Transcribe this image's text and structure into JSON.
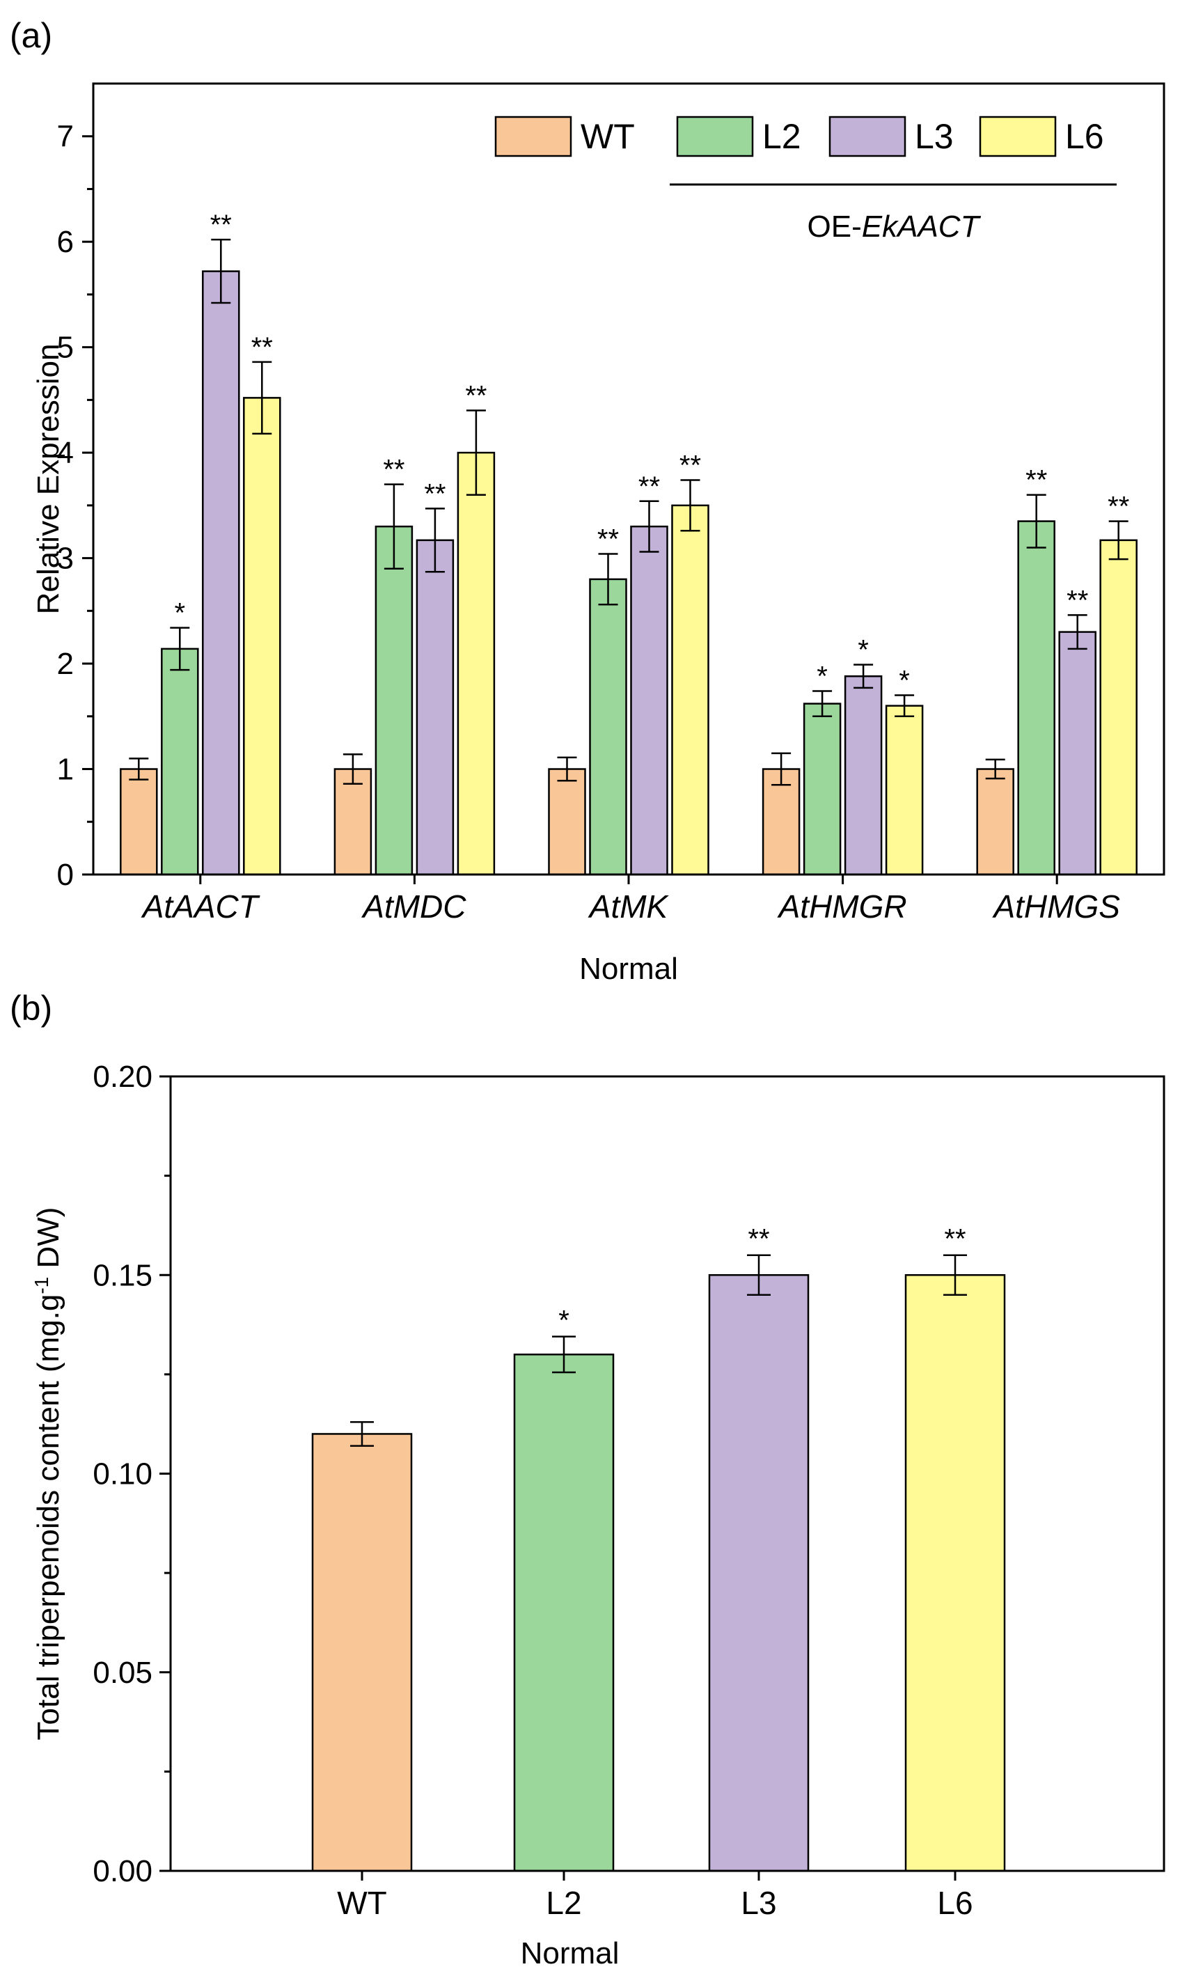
{
  "colors": {
    "WT": "#f9c698",
    "L2": "#9bd79a",
    "L3": "#c2b2d8",
    "L6": "#fffa96",
    "frame": "#000000"
  },
  "chart_data": [
    {
      "type": "bar",
      "panel_label": "(a)",
      "title": "",
      "xlabel": "Normal",
      "ylabel": "Relative Expression",
      "ylim": [
        0,
        7.5
      ],
      "yticks": [
        "0",
        "1",
        "2",
        "3",
        "4",
        "5",
        "6",
        "7"
      ],
      "categories": [
        "AtAACT",
        "AtMDC",
        "AtMK",
        "AtHMGR",
        "AtHMGS"
      ],
      "legend": {
        "entries": [
          "WT",
          "L2",
          "L3",
          "L6"
        ],
        "group_label_prefix": "OE-",
        "group_label_italic": "EkAACT",
        "position": "top-right"
      },
      "series": [
        {
          "name": "WT",
          "values": [
            1.0,
            1.0,
            1.0,
            1.0,
            1.0
          ],
          "errors": [
            0.1,
            0.14,
            0.11,
            0.15,
            0.09
          ],
          "sig": [
            "",
            "",
            "",
            "",
            ""
          ]
        },
        {
          "name": "L2",
          "values": [
            2.14,
            3.3,
            2.8,
            1.62,
            3.35
          ],
          "errors": [
            0.2,
            0.4,
            0.24,
            0.12,
            0.25
          ],
          "sig": [
            "*",
            "**",
            "**",
            "*",
            "**"
          ]
        },
        {
          "name": "L3",
          "values": [
            5.72,
            3.17,
            3.3,
            1.88,
            2.3
          ],
          "errors": [
            0.3,
            0.3,
            0.24,
            0.11,
            0.16
          ],
          "sig": [
            "**",
            "**",
            "**",
            "*",
            "**"
          ]
        },
        {
          "name": "L6",
          "values": [
            4.52,
            4.0,
            3.5,
            1.6,
            3.17
          ],
          "errors": [
            0.34,
            0.4,
            0.24,
            0.1,
            0.18
          ],
          "sig": [
            "**",
            "**",
            "**",
            "*",
            "**"
          ]
        }
      ]
    },
    {
      "type": "bar",
      "panel_label": "(b)",
      "title": "",
      "xlabel": "Normal",
      "ylabel_prefix": "Total triperpenoids content (mg.g",
      "ylabel_sup": "-1",
      "ylabel_suffix": " DW)",
      "ylim": [
        0,
        0.2
      ],
      "yticks": [
        "0.00",
        "0.05",
        "0.10",
        "0.15",
        "0.20"
      ],
      "categories": [
        "WT",
        "L2",
        "L3",
        "L6"
      ],
      "values": [
        0.11,
        0.13,
        0.15,
        0.15
      ],
      "errors": [
        0.003,
        0.0045,
        0.005,
        0.005
      ],
      "sig": [
        "",
        "*",
        "**",
        "**"
      ]
    }
  ]
}
